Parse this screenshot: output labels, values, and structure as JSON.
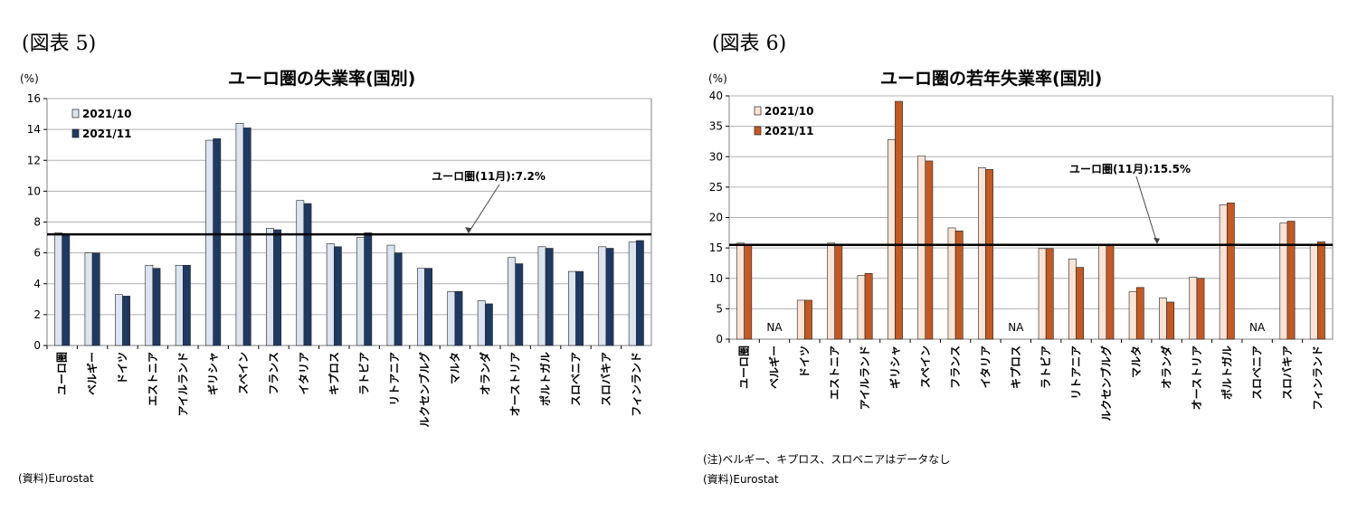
{
  "left": {
    "figure_label": "(図表 5)",
    "unit_label": "(%)",
    "source": "(資料)Eurostat",
    "chart_data": {
      "type": "bar",
      "title": "ユーロ圏の失業率(国別)",
      "xlabel": "",
      "ylabel": "(%)",
      "ylim": [
        0,
        16
      ],
      "yticks": [
        0,
        2,
        4,
        6,
        8,
        10,
        12,
        14,
        16
      ],
      "grid": true,
      "legend_position": "top-left",
      "categories": [
        "ユーロ圏",
        "ベルギー",
        "ドイツ",
        "エストニア",
        "アイルランド",
        "ギリシャ",
        "スペイン",
        "フランス",
        "イタリア",
        "キプロス",
        "ラトビア",
        "リトアニア",
        "ルクセンブルグ",
        "マルタ",
        "オランダ",
        "オーストリア",
        "ポルトガル",
        "スロベニア",
        "スロバキア",
        "フィンランド"
      ],
      "series": [
        {
          "name": "2021/10",
          "color": "#dde4f1",
          "values": [
            7.3,
            6.0,
            3.3,
            5.2,
            5.2,
            13.3,
            14.4,
            7.6,
            9.4,
            6.6,
            7.0,
            6.5,
            5.0,
            3.5,
            2.9,
            5.7,
            6.4,
            4.8,
            6.4,
            6.7
          ]
        },
        {
          "name": "2021/11",
          "color": "#1f3a62",
          "values": [
            7.2,
            6.0,
            3.2,
            5.0,
            5.2,
            13.4,
            14.1,
            7.5,
            9.2,
            6.4,
            7.3,
            6.0,
            5.0,
            3.5,
            2.7,
            5.3,
            6.3,
            4.8,
            6.3,
            6.8
          ]
        }
      ],
      "reference_line": {
        "value": 7.2,
        "label": "ユーロ圏(11月):7.2%"
      }
    }
  },
  "right": {
    "figure_label": "(図表 6)",
    "unit_label": "(%)",
    "note": "(注)ベルギー、キプロス、スロベニアはデータなし",
    "source": "(資料)Eurostat",
    "chart_data": {
      "type": "bar",
      "title": "ユーロ圏の若年失業率(国別)",
      "xlabel": "",
      "ylabel": "(%)",
      "ylim": [
        0,
        40
      ],
      "yticks": [
        0,
        5,
        10,
        15,
        20,
        25,
        30,
        35,
        40
      ],
      "grid": true,
      "legend_position": "top-left",
      "categories": [
        "ユーロ圏",
        "ベルギー",
        "ドイツ",
        "エストニア",
        "アイルランド",
        "ギリシャ",
        "スペイン",
        "フランス",
        "イタリア",
        "キプロス",
        "ラトビア",
        "リトアニア",
        "ルクセンブルグ",
        "マルタ",
        "オランダ",
        "オーストリア",
        "ポルトガル",
        "スロベニア",
        "スロバキア",
        "フィンランド"
      ],
      "series": [
        {
          "name": "2021/10",
          "color": "#fbe3d6",
          "values": [
            15.8,
            null,
            6.4,
            15.8,
            10.5,
            32.8,
            30.1,
            18.3,
            28.2,
            null,
            14.9,
            13.2,
            15.6,
            7.8,
            6.8,
            10.2,
            22.1,
            null,
            19.1,
            15.5
          ]
        },
        {
          "name": "2021/11",
          "color": "#c25a25",
          "values": [
            15.5,
            null,
            6.4,
            15.6,
            10.8,
            39.1,
            29.3,
            17.8,
            27.9,
            null,
            14.9,
            11.8,
            15.6,
            8.5,
            6.1,
            10.0,
            22.4,
            null,
            19.4,
            16.0
          ]
        }
      ],
      "na_label": "NA",
      "reference_line": {
        "value": 15.5,
        "label": "ユーロ圏(11月):15.5%"
      }
    }
  }
}
